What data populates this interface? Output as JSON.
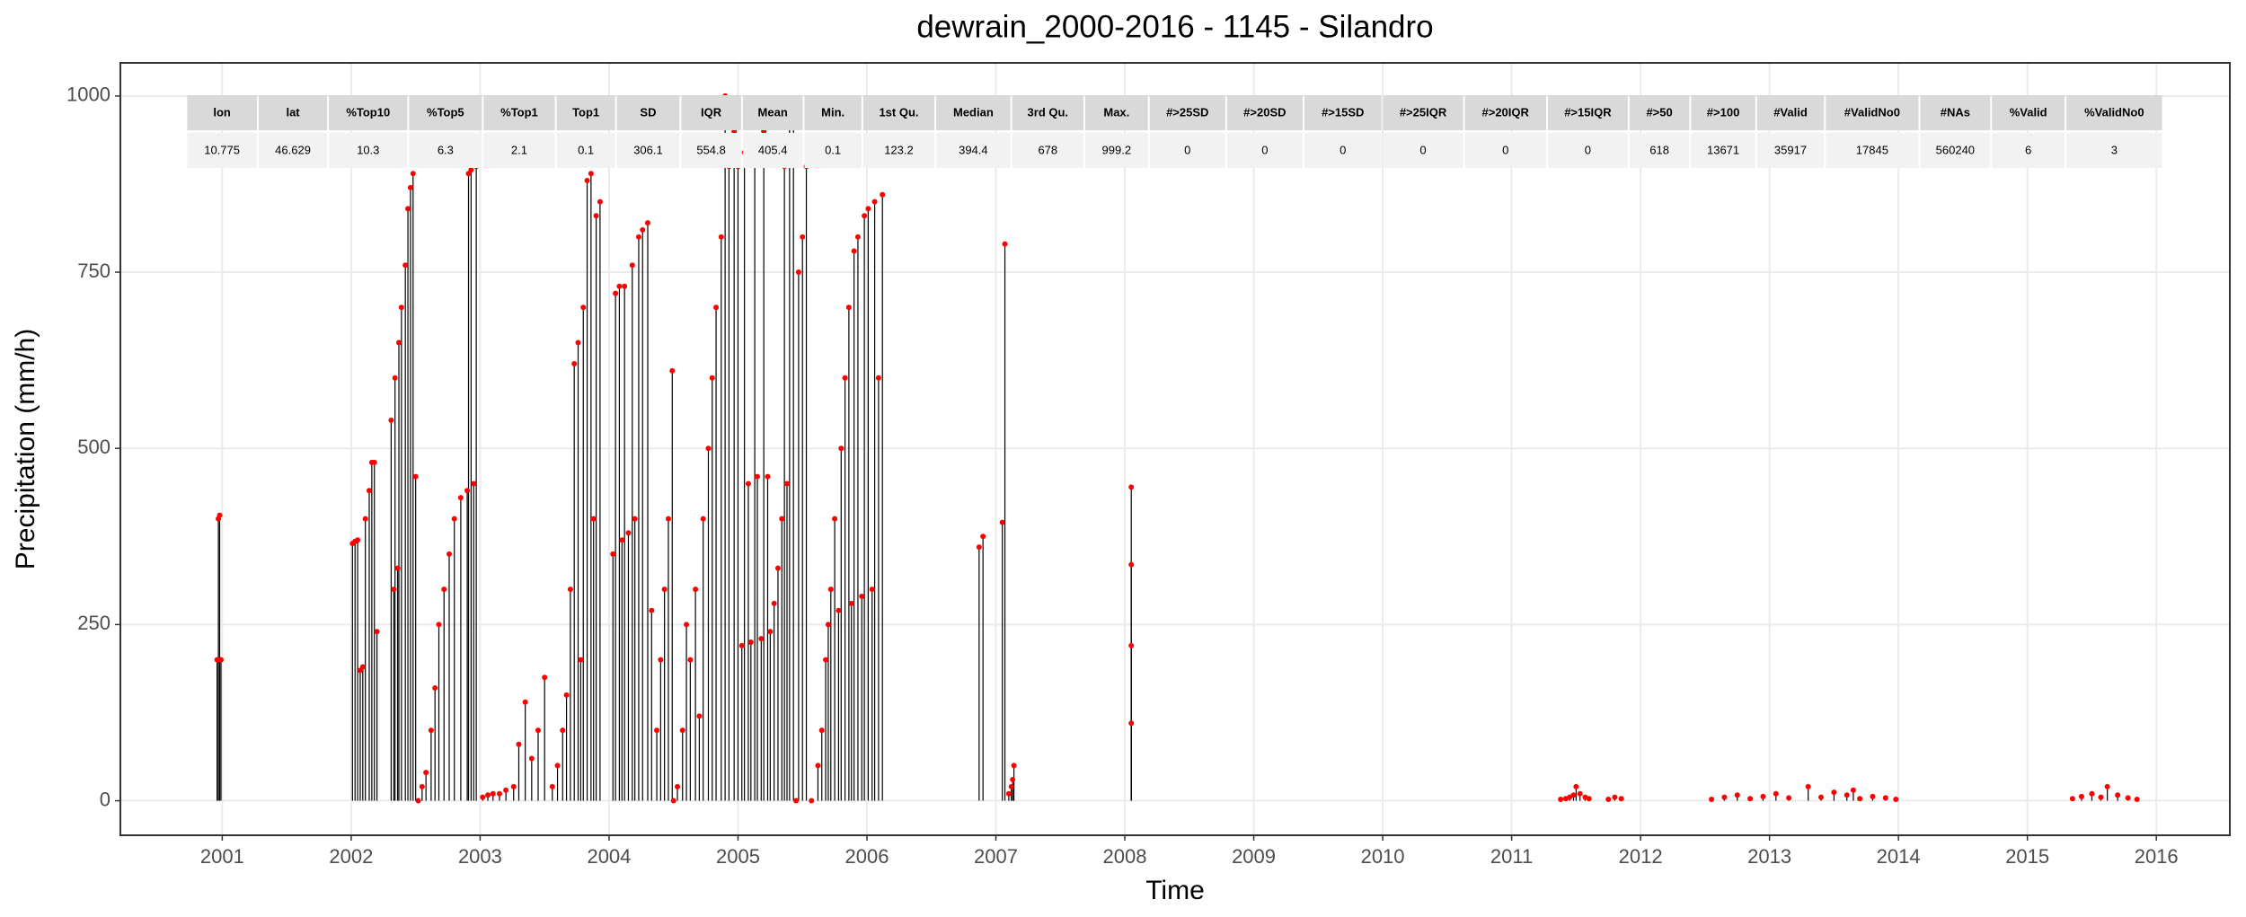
{
  "chart_data": {
    "type": "spike",
    "title": "dewrain_2000-2016 - 1145 - Silandro",
    "xlabel": "Time",
    "ylabel": "Precipitation (mm/h)",
    "xlim": [
      2000.21,
      2016.57
    ],
    "ylim": [
      -49,
      1047
    ],
    "xticks": [
      2001,
      2002,
      2003,
      2004,
      2005,
      2006,
      2007,
      2008,
      2009,
      2010,
      2011,
      2012,
      2013,
      2014,
      2015,
      2016
    ],
    "yticks": [
      0,
      250,
      500,
      750,
      1000
    ],
    "grid": true,
    "color": "#ff0000",
    "line_color": "#000000",
    "x": [
      2000.96,
      2000.97,
      2000.98,
      2000.99,
      2002.01,
      2002.03,
      2002.05,
      2002.07,
      2002.09,
      2002.11,
      2002.14,
      2002.16,
      2002.18,
      2002.2,
      2002.31,
      2002.33,
      2002.34,
      2002.36,
      2002.37,
      2002.39,
      2002.42,
      2002.44,
      2002.46,
      2002.48,
      2002.5,
      2002.52,
      2002.55,
      2002.58,
      2002.62,
      2002.65,
      2002.68,
      2002.72,
      2002.76,
      2002.8,
      2002.85,
      2002.9,
      2002.91,
      2002.93,
      2002.95,
      2002.97,
      2003.02,
      2003.06,
      2003.1,
      2003.15,
      2003.2,
      2003.26,
      2003.3,
      2003.35,
      2003.4,
      2003.45,
      2003.5,
      2003.56,
      2003.6,
      2003.64,
      2003.67,
      2003.7,
      2003.73,
      2003.76,
      2003.78,
      2003.8,
      2003.83,
      2003.86,
      2003.88,
      2003.9,
      2003.93,
      2004.03,
      2004.05,
      2004.08,
      2004.1,
      2004.12,
      2004.15,
      2004.18,
      2004.2,
      2004.23,
      2004.26,
      2004.3,
      2004.33,
      2004.37,
      2004.4,
      2004.43,
      2004.46,
      2004.49,
      2004.5,
      2004.53,
      2004.57,
      2004.6,
      2004.63,
      2004.67,
      2004.7,
      2004.73,
      2004.77,
      2004.8,
      2004.83,
      2004.87,
      2004.9,
      2004.93,
      2004.97,
      2005.0,
      2005.03,
      2005.05,
      2005.08,
      2005.1,
      2005.13,
      2005.15,
      2005.18,
      2005.2,
      2005.23,
      2005.25,
      2005.28,
      2005.31,
      2005.34,
      2005.36,
      2005.38,
      2005.4,
      2005.43,
      2005.45,
      2005.47,
      2005.5,
      2005.53,
      2005.57,
      2005.62,
      2005.65,
      2005.68,
      2005.7,
      2005.72,
      2005.75,
      2005.78,
      2005.8,
      2005.83,
      2005.86,
      2005.88,
      2005.9,
      2005.93,
      2005.96,
      2005.98,
      2006.01,
      2006.04,
      2006.06,
      2006.09,
      2006.12,
      2006.87,
      2006.9,
      2007.05,
      2007.07,
      2007.1,
      2007.12,
      2007.13,
      2007.14,
      2008.05,
      2008.05,
      2008.05,
      2008.05,
      2011.38,
      2011.42,
      2011.45,
      2011.48,
      2011.5,
      2011.53,
      2011.57,
      2011.6,
      2011.75,
      2011.8,
      2011.85,
      2012.55,
      2012.65,
      2012.75,
      2012.85,
      2012.95,
      2013.05,
      2013.15,
      2013.3,
      2013.4,
      2013.5,
      2013.6,
      2013.65,
      2013.7,
      2013.8,
      2013.9,
      2013.98,
      2015.35,
      2015.42,
      2015.5,
      2015.57,
      2015.62,
      2015.7,
      2015.78,
      2015.85
    ],
    "values": [
      200,
      400,
      405,
      200,
      365,
      368,
      370,
      185,
      190,
      400,
      440,
      480,
      480,
      240,
      540,
      300,
      600,
      330,
      650,
      700,
      760,
      840,
      870,
      890,
      460,
      0,
      20,
      40,
      100,
      160,
      250,
      300,
      350,
      400,
      430,
      440,
      890,
      895,
      450,
      900,
      5,
      8,
      10,
      10,
      15,
      20,
      80,
      140,
      60,
      100,
      175,
      20,
      50,
      100,
      150,
      300,
      620,
      650,
      200,
      700,
      880,
      890,
      400,
      830,
      850,
      350,
      720,
      730,
      370,
      730,
      380,
      760,
      400,
      800,
      810,
      820,
      270,
      100,
      200,
      300,
      400,
      610,
      0,
      20,
      100,
      250,
      200,
      300,
      120,
      400,
      500,
      600,
      700,
      800,
      1000,
      900,
      950,
      900,
      220,
      920,
      450,
      225,
      940,
      460,
      230,
      950,
      460,
      240,
      280,
      330,
      400,
      900,
      450,
      980,
      990,
      0,
      750,
      800,
      900,
      0,
      50,
      100,
      200,
      250,
      300,
      400,
      270,
      500,
      600,
      700,
      280,
      780,
      800,
      290,
      830,
      840,
      300,
      850,
      600,
      860,
      360,
      375,
      395,
      790,
      10,
      20,
      30,
      50,
      110,
      220,
      335,
      445,
      2,
      3,
      5,
      8,
      20,
      10,
      5,
      3,
      2,
      5,
      3,
      2,
      5,
      8,
      3,
      6,
      10,
      4,
      20,
      5,
      12,
      8,
      15,
      3,
      6,
      4,
      2,
      3,
      6,
      10,
      5,
      20,
      8,
      4,
      2
    ],
    "table": {
      "columns": [
        "lon",
        "lat",
        "%Top10",
        "%Top5",
        "%Top1",
        "Top1",
        "SD",
        "IQR",
        "Mean",
        "Min.",
        "1st Qu.",
        "Median",
        "3rd Qu.",
        "Max.",
        "#>25SD",
        "#>20SD",
        "#>15SD",
        "#>25IQR",
        "#>20IQR",
        "#>15IQR",
        "#>50",
        "#>100",
        "#Valid",
        "#ValidNo0",
        "#NAs",
        "%Valid",
        "%ValidNo0"
      ],
      "values": [
        10.775,
        46.629,
        10.3,
        6.3,
        2.1,
        0.1,
        306.1,
        554.8,
        405.4,
        0.1,
        123.2,
        394.4,
        678,
        999.2,
        0,
        0,
        0,
        0,
        0,
        0,
        618,
        13671,
        35917,
        17845,
        560240,
        6,
        3
      ]
    }
  }
}
